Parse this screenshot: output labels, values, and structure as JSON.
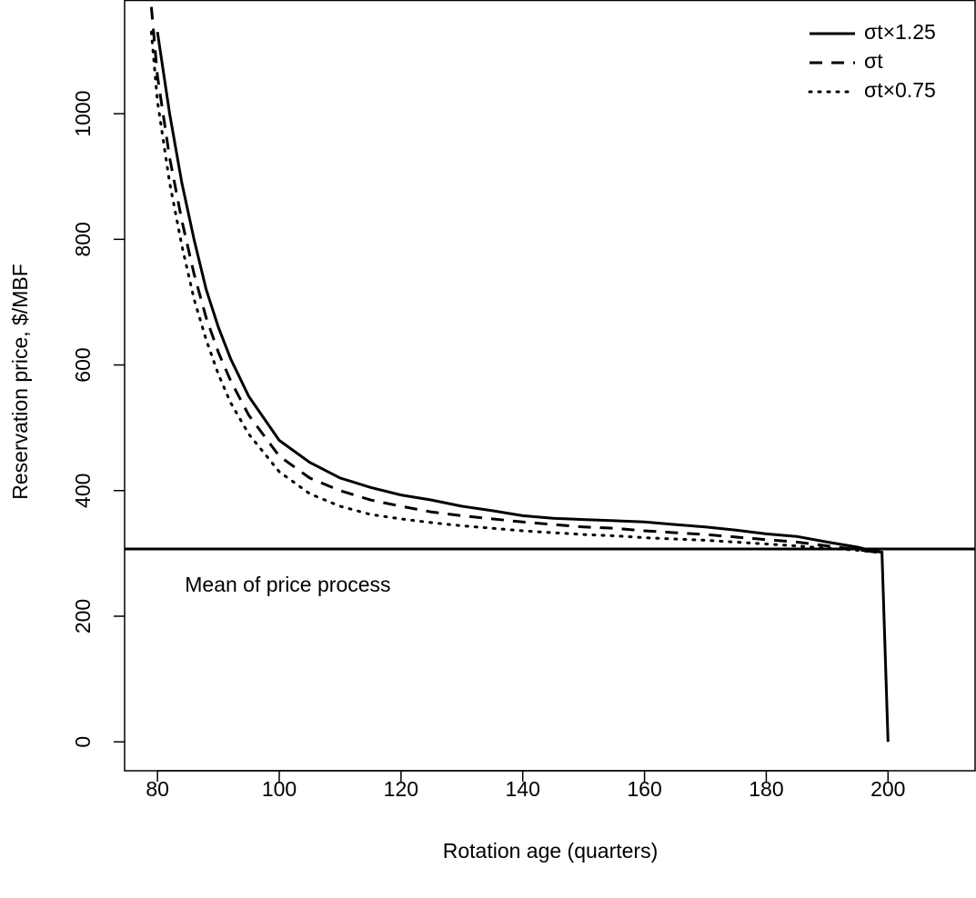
{
  "chart_data": {
    "type": "line",
    "xlabel": "Rotation age (quarters)",
    "ylabel": "Reservation price, $/MBF",
    "xlim": [
      74.6,
      214.3
    ],
    "ylim": [
      -46,
      1181
    ],
    "xticks": [
      80,
      100,
      120,
      140,
      160,
      180,
      200
    ],
    "yticks": [
      0,
      200,
      400,
      600,
      800,
      1000
    ],
    "hline": 307,
    "annotation": "Mean of price process",
    "legend": "top-right",
    "series": [
      {
        "name": "σt×1.25",
        "color": "#000000",
        "linestyle": "solid",
        "x": [
          80,
          82,
          84,
          86,
          88,
          90,
          92,
          95,
          100,
          105,
          110,
          115,
          120,
          125,
          130,
          135,
          140,
          145,
          150,
          155,
          160,
          165,
          170,
          175,
          180,
          185,
          190,
          195,
          198,
          199,
          200
        ],
        "values": [
          1130,
          1000,
          890,
          800,
          720,
          660,
          610,
          550,
          480,
          445,
          420,
          405,
          393,
          385,
          375,
          368,
          360,
          356,
          354,
          352,
          350,
          346,
          342,
          337,
          331,
          327,
          318,
          310,
          303,
          302,
          0
        ]
      },
      {
        "name": "σt",
        "color": "#000000",
        "linestyle": "dashed",
        "x": [
          79,
          80,
          82,
          84,
          86,
          88,
          90,
          92,
          95,
          100,
          105,
          110,
          115,
          120,
          125,
          130,
          135,
          140,
          145,
          150,
          155,
          160,
          165,
          170,
          175,
          180,
          185,
          190,
          195,
          198
        ],
        "values": [
          1170,
          1060,
          930,
          830,
          745,
          675,
          620,
          575,
          520,
          455,
          420,
          400,
          385,
          375,
          366,
          360,
          355,
          350,
          346,
          342,
          340,
          336,
          333,
          330,
          326,
          322,
          318,
          312,
          306,
          302
        ]
      },
      {
        "name": "σt×0.75",
        "color": "#000000",
        "linestyle": "dotted",
        "x": [
          79,
          80,
          82,
          84,
          86,
          88,
          90,
          92,
          95,
          100,
          105,
          110,
          115,
          120,
          125,
          130,
          135,
          140,
          145,
          150,
          155,
          160,
          165,
          170,
          175,
          180,
          185,
          190,
          195,
          198
        ],
        "values": [
          1130,
          1020,
          890,
          790,
          705,
          640,
          585,
          540,
          490,
          430,
          395,
          375,
          362,
          355,
          349,
          344,
          340,
          336,
          333,
          330,
          328,
          325,
          323,
          321,
          318,
          315,
          312,
          308,
          305,
          302
        ]
      }
    ]
  }
}
